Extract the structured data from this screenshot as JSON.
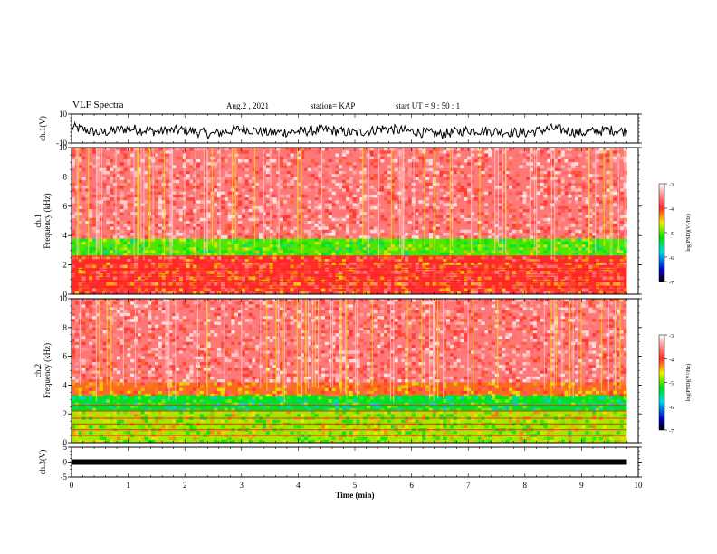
{
  "header": {
    "title": "VLF Spectra",
    "date": "Aug.2 , 2021",
    "station": "station= KAP",
    "start": "start UT = 9 : 50 : 1"
  },
  "chart_data": [
    {
      "type": "line",
      "panel": "ch1-waveform",
      "ylabel": "ch.1(V)",
      "ylim": [
        -10,
        10
      ],
      "y_ticks": [
        "10",
        "-10"
      ],
      "x": [
        0,
        0.5,
        1,
        1.5,
        2,
        2.5,
        3,
        3.5,
        4,
        4.5,
        5,
        5.5,
        6,
        6.5,
        7,
        7.5,
        8,
        8.5,
        9,
        9.5,
        9.8
      ],
      "values": [
        1,
        -3,
        0,
        -2,
        -1,
        -4,
        0,
        -3,
        -2,
        -1,
        -3,
        0,
        -2,
        -4,
        -1,
        -2,
        -3,
        0,
        -3,
        -1,
        -2
      ],
      "color": "#000000"
    },
    {
      "type": "heatmap",
      "panel": "ch1-spectrogram",
      "ylabel": "ch.1\nFrequency (kHz)",
      "ylim": [
        0,
        10
      ],
      "y_ticks": [
        "0",
        "2",
        "4",
        "6",
        "8",
        "10"
      ],
      "xlim": [
        0,
        9.8
      ],
      "colorbar": {
        "label": "log(PSD)(V²/Hz)",
        "ticks": [
          "-3",
          "-4",
          "-5",
          "-6",
          "-7"
        ],
        "range": [
          -7,
          -3
        ]
      },
      "bands": [
        {
          "f": [
            3.8,
            10
          ],
          "level": -3.6
        },
        {
          "f": [
            2.6,
            3.8
          ],
          "level": -5.0
        },
        {
          "f": [
            0,
            2.6
          ],
          "level": -4.0
        }
      ]
    },
    {
      "type": "heatmap",
      "panel": "ch2-spectrogram",
      "ylabel": "ch.2\nFrequency (kHz)",
      "ylim": [
        0,
        10
      ],
      "y_ticks": [
        "0",
        "2",
        "4",
        "6",
        "8",
        "10"
      ],
      "xlim": [
        0,
        9.8
      ],
      "colorbar": {
        "label": "log(PSD)(V²/Hz)",
        "ticks": [
          "-3",
          "-4",
          "-5",
          "-6",
          "-7"
        ],
        "range": [
          -7,
          -3
        ]
      },
      "bands": [
        {
          "f": [
            4.2,
            10
          ],
          "level": -3.6
        },
        {
          "f": [
            3.3,
            4.2
          ],
          "level": -4.2
        },
        {
          "f": [
            2.2,
            3.3
          ],
          "level": -5.3
        },
        {
          "f": [
            0,
            2.2
          ],
          "level": -4.8
        }
      ]
    },
    {
      "type": "line",
      "panel": "ch3-waveform",
      "ylabel": "ch.3(V)",
      "ylim": [
        -5,
        5
      ],
      "y_ticks": [
        "5",
        "0",
        "-5"
      ],
      "x": [
        0,
        9.8
      ],
      "values": [
        0,
        0
      ],
      "color": "#000000"
    }
  ],
  "xaxis": {
    "label": "Time (min)",
    "ticks": [
      "0",
      "1",
      "2",
      "3",
      "4",
      "5",
      "6",
      "7",
      "8",
      "9",
      "10"
    ],
    "xlim": [
      0,
      10
    ]
  }
}
